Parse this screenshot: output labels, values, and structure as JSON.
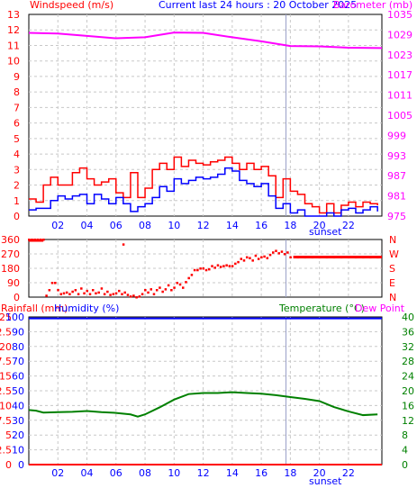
{
  "header": {
    "title": "Current last 24 hours : 20 October 2025",
    "left_label": "Windspeed (m/s)",
    "right_label": "Barometer (mb)"
  },
  "x_axis": {
    "ticks": [
      "02",
      "04",
      "06",
      "08",
      "10",
      "12",
      "14",
      "16",
      "18",
      "20",
      "22"
    ],
    "sunset_label": "sunset"
  },
  "chart_data": [
    {
      "type": "line",
      "name": "wind-barometer",
      "x_unit": "hours",
      "xlim": [
        0,
        24.3
      ],
      "ylabel_left": "Windspeed (m/s)",
      "ylabel_right": "Barometer (mb)",
      "ylim_left": [
        0,
        13
      ],
      "ylim_right": [
        975,
        1035
      ],
      "yticks_left": [
        "0",
        "1",
        "2",
        "3",
        "4",
        "5",
        "6",
        "7",
        "8",
        "9",
        "10",
        "11",
        "12",
        "13"
      ],
      "yticks_right": [
        "975",
        "981",
        "987",
        "993",
        "999",
        "1005",
        "1011",
        "1017",
        "1023",
        "1029",
        "1035"
      ],
      "grid": true,
      "series": [
        {
          "name": "Barometer",
          "color": "#ff00ff",
          "axis": "right",
          "x": [
            0,
            2,
            4,
            6,
            8,
            10,
            12,
            14,
            16,
            18,
            20,
            22,
            24.3
          ],
          "y": [
            1029.5,
            1029.3,
            1028.6,
            1027.9,
            1028.2,
            1029.6,
            1029.5,
            1028.2,
            1027.0,
            1025.6,
            1025.5,
            1025.1,
            1025.0
          ]
        },
        {
          "name": "Gust",
          "color": "#ff0000",
          "axis": "left",
          "x": [
            0,
            0.5,
            1,
            1.5,
            2,
            2.5,
            3,
            3.5,
            4,
            4.5,
            5,
            5.5,
            6,
            6.5,
            7,
            7.5,
            8,
            8.5,
            9,
            9.5,
            10,
            10.5,
            11,
            11.5,
            12,
            12.5,
            13,
            13.5,
            14,
            14.5,
            15,
            15.5,
            16,
            16.5,
            17,
            17.5,
            18,
            18.5,
            19,
            19.5,
            20,
            20.5,
            21,
            21.5,
            22,
            22.5,
            23,
            23.5,
            24
          ],
          "y": [
            1.1,
            0.9,
            2.0,
            2.5,
            2.0,
            2.0,
            2.8,
            3.1,
            2.4,
            2.0,
            2.2,
            2.4,
            1.5,
            1.2,
            2.8,
            1.2,
            1.8,
            3.0,
            3.4,
            3.0,
            3.8,
            3.2,
            3.6,
            3.4,
            3.3,
            3.5,
            3.6,
            3.8,
            3.4,
            3.0,
            3.4,
            3.0,
            3.2,
            2.6,
            1.2,
            2.4,
            1.6,
            1.4,
            0.8,
            0.6,
            0.2,
            0.8,
            0.2,
            0.7,
            0.9,
            0.6,
            0.9,
            0.8,
            0.7
          ]
        },
        {
          "name": "Speed",
          "color": "#0000ff",
          "axis": "left",
          "x": [
            0,
            0.5,
            1,
            1.5,
            2,
            2.5,
            3,
            3.5,
            4,
            4.5,
            5,
            5.5,
            6,
            6.5,
            7,
            7.5,
            8,
            8.5,
            9,
            9.5,
            10,
            10.5,
            11,
            11.5,
            12,
            12.5,
            13,
            13.5,
            14,
            14.5,
            15,
            15.5,
            16,
            16.5,
            17,
            17.5,
            18,
            18.5,
            19,
            19.5,
            20,
            20.5,
            21,
            21.5,
            22,
            22.5,
            23,
            23.5,
            24
          ],
          "y": [
            0.4,
            0.5,
            0.5,
            1.0,
            1.3,
            1.1,
            1.3,
            1.4,
            0.8,
            1.4,
            1.1,
            0.8,
            1.2,
            0.8,
            0.3,
            0.6,
            0.8,
            1.2,
            1.9,
            1.6,
            2.4,
            2.1,
            2.3,
            2.5,
            2.4,
            2.5,
            2.7,
            3.1,
            2.9,
            2.3,
            2.1,
            1.9,
            2.1,
            1.3,
            0.5,
            0.8,
            0.2,
            0.4,
            0.0,
            0.0,
            0.0,
            0.2,
            0.0,
            0.4,
            0.5,
            0.2,
            0.4,
            0.6,
            0.3
          ]
        }
      ]
    },
    {
      "type": "scatter",
      "name": "wind-direction",
      "x_unit": "hours",
      "xlim": [
        0,
        24.3
      ],
      "ylim": [
        0,
        360
      ],
      "yticks_left": [
        "0",
        "90",
        "180",
        "270",
        "360"
      ],
      "yticks_right": [
        "N",
        "E",
        "S",
        "W",
        "N"
      ],
      "grid": true,
      "series": [
        {
          "name": "Wind Direction",
          "color": "#ff0000",
          "x": [
            0.0,
            0.2,
            0.4,
            0.6,
            0.8,
            1.0,
            1.2,
            1.4,
            1.6,
            1.8,
            2.0,
            2.2,
            2.4,
            2.6,
            2.8,
            3.0,
            3.2,
            3.4,
            3.6,
            3.8,
            4.0,
            4.2,
            4.4,
            4.6,
            4.8,
            5.0,
            5.2,
            5.4,
            5.6,
            5.8,
            6.0,
            6.2,
            6.4,
            6.6,
            6.8,
            7.0,
            7.2,
            7.4,
            7.6,
            7.8,
            8.0,
            8.2,
            8.4,
            8.6,
            8.8,
            9.0,
            9.2,
            9.4,
            9.6,
            9.8,
            10.0,
            10.2,
            10.4,
            10.6,
            10.8,
            11.0,
            11.2,
            11.4,
            11.6,
            11.8,
            12.0,
            12.2,
            12.4,
            12.6,
            12.8,
            13.0,
            13.2,
            13.4,
            13.6,
            13.8,
            14.0,
            14.2,
            14.4,
            14.6,
            14.8,
            15.0,
            15.2,
            15.4,
            15.6,
            15.8,
            16.0,
            16.2,
            16.4,
            16.6,
            16.8,
            17.0,
            17.2,
            17.4,
            17.6,
            17.8,
            18.0,
            18.5,
            19.0,
            19.5,
            20.0,
            20.5,
            21.0,
            21.5,
            22.0,
            22.5,
            23.0,
            23.5,
            24.0,
            6.5
          ],
          "y": [
            360,
            360,
            360,
            360,
            360,
            360,
            10,
            45,
            90,
            90,
            45,
            20,
            25,
            30,
            20,
            35,
            45,
            20,
            55,
            25,
            40,
            20,
            45,
            25,
            30,
            55,
            20,
            35,
            15,
            20,
            25,
            40,
            20,
            30,
            15,
            5,
            10,
            0,
            5,
            20,
            45,
            30,
            50,
            20,
            45,
            60,
            35,
            50,
            75,
            45,
            60,
            90,
            80,
            60,
            95,
            120,
            140,
            170,
            170,
            180,
            180,
            170,
            175,
            195,
            185,
            200,
            190,
            195,
            200,
            195,
            195,
            210,
            220,
            240,
            230,
            250,
            245,
            230,
            260,
            240,
            250,
            255,
            245,
            265,
            280,
            290,
            275,
            285,
            270,
            280,
            250,
            250,
            250,
            250,
            250,
            250,
            250,
            250,
            250,
            250,
            250,
            250,
            250,
            330
          ]
        }
      ]
    },
    {
      "type": "line",
      "name": "rain-humidity-temperature",
      "x_unit": "hours",
      "xlim": [
        0,
        24.3
      ],
      "ylabel_left_1": "Rainfall (mm)",
      "ylabel_left_2": "Humidity (%)",
      "ylabel_right_1": "Temperature (°C)",
      "ylabel_right_2": "Dew Point",
      "yticks_rain": [
        "0",
        "2.5",
        "5",
        "7.5",
        "10",
        "12.5",
        "15",
        "17.5",
        "20",
        "22.5",
        "25"
      ],
      "yticks_humidity": [
        "0",
        "10",
        "20",
        "30",
        "40",
        "50",
        "60",
        "70",
        "80",
        "90",
        "100"
      ],
      "yticks_temperature": [
        "0",
        "4",
        "8",
        "12",
        "16",
        "20",
        "24",
        "28",
        "32",
        "36",
        "40"
      ],
      "ylim_rain": [
        0,
        25
      ],
      "ylim_humidity": [
        0,
        100
      ],
      "ylim_temperature": [
        0,
        40
      ],
      "grid": true,
      "series": [
        {
          "name": "Humidity",
          "color": "#0000ff",
          "axis": "humidity",
          "x": [
            0,
            24.3
          ],
          "y": [
            99,
            99
          ]
        },
        {
          "name": "Rainfall",
          "color": "#ff0000",
          "axis": "rain",
          "x": [
            0,
            24.3
          ],
          "y": [
            0,
            0
          ]
        },
        {
          "name": "Temperature",
          "color": "#008000",
          "axis": "temperature",
          "x": [
            0,
            0.5,
            1,
            2,
            3,
            4,
            5,
            6,
            7,
            7.5,
            8,
            9,
            10,
            11,
            12,
            13,
            14,
            15,
            16,
            17,
            18,
            19,
            20,
            21,
            22,
            23,
            24
          ],
          "y": [
            14.8,
            14.6,
            14.1,
            14.2,
            14.3,
            14.5,
            14.2,
            14.0,
            13.6,
            13.0,
            13.6,
            15.5,
            17.6,
            19.1,
            19.4,
            19.4,
            19.6,
            19.4,
            19.2,
            18.8,
            18.3,
            17.8,
            17.2,
            15.6,
            14.4,
            13.4,
            13.6
          ]
        }
      ]
    }
  ]
}
